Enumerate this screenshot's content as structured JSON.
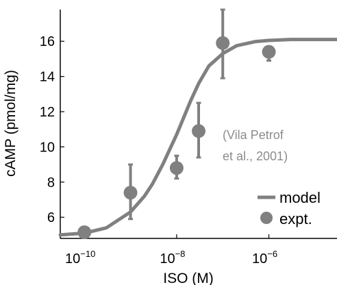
{
  "chart_data": {
    "type": "scatter",
    "xlabel": "ISO (M)",
    "ylabel": "cAMP (pmol/mg)",
    "x_scale": "log",
    "xlim": [
      3e-11,
      3e-05
    ],
    "ylim": [
      4.8,
      17.8
    ],
    "x_ticks": [
      {
        "value": 1e-10,
        "base": "10",
        "exp": "−10"
      },
      {
        "value": 1e-08,
        "base": "10",
        "exp": "−8"
      },
      {
        "value": 1e-06,
        "base": "10",
        "exp": "−6"
      }
    ],
    "y_ticks": [
      {
        "value": 6,
        "label": "6"
      },
      {
        "value": 8,
        "label": "8"
      },
      {
        "value": 10,
        "label": "10"
      },
      {
        "value": 12,
        "label": "12"
      },
      {
        "value": 14,
        "label": "14"
      },
      {
        "value": 16,
        "label": "16"
      }
    ],
    "grid": false,
    "legend_position": "lower-right",
    "series": [
      {
        "name": "model",
        "kind": "line",
        "color": "#808080",
        "x": [
          3e-11,
          1e-10,
          3e-10,
          1e-09,
          2e-09,
          3e-09,
          5e-09,
          1e-08,
          2e-08,
          3e-08,
          5e-08,
          1e-07,
          2e-07,
          5e-07,
          1e-06,
          3e-06,
          1e-05,
          3e-05
        ],
        "y": [
          5.0,
          5.1,
          5.4,
          6.3,
          7.2,
          7.9,
          9.0,
          10.7,
          12.6,
          13.6,
          14.6,
          15.3,
          15.75,
          15.98,
          16.05,
          16.1,
          16.1,
          16.1
        ]
      },
      {
        "name": "expt.",
        "kind": "scatter",
        "color": "#808080",
        "x": [
          1e-10,
          1e-09,
          1e-08,
          3e-08,
          1e-07,
          1e-06
        ],
        "y": [
          4.6,
          7.4,
          8.8,
          10.9,
          15.9,
          15.4
        ],
        "err_low": [
          0.0,
          1.5,
          0.6,
          1.5,
          2.0,
          0.5
        ],
        "err_high": [
          0.0,
          1.6,
          0.7,
          1.6,
          1.9,
          0.3
        ]
      }
    ],
    "annotation": [
      "(Vila Petrof",
      "et al., 2001)"
    ]
  }
}
